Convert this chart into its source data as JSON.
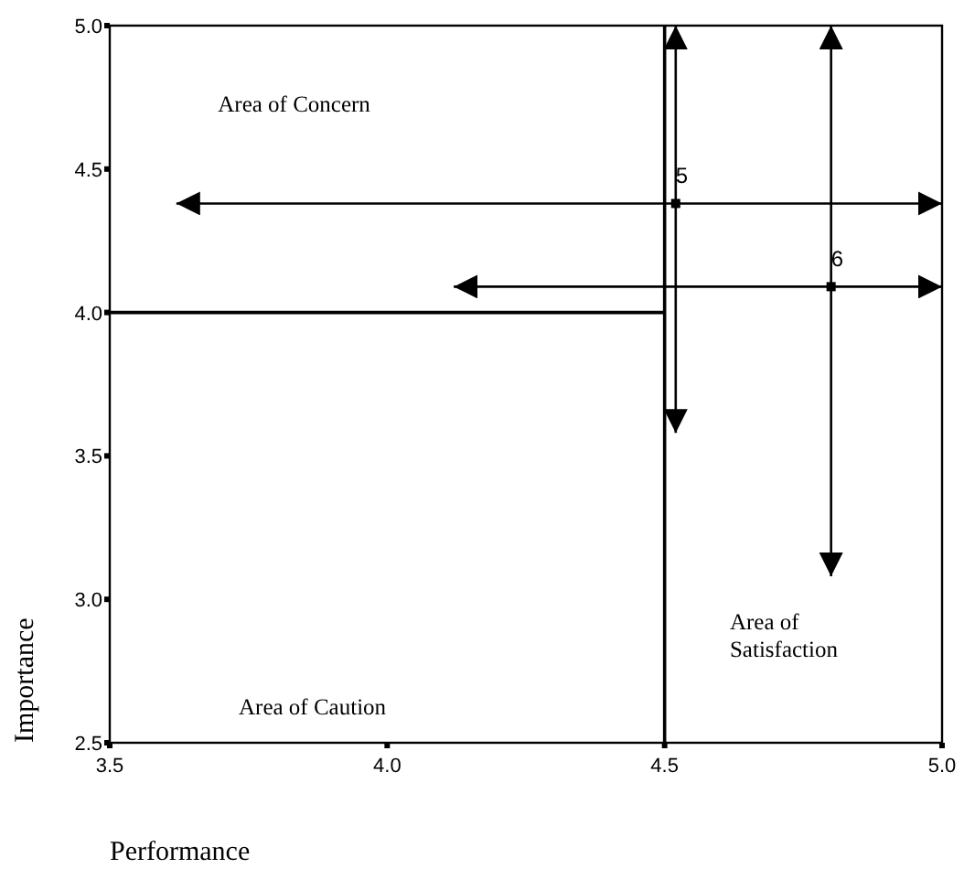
{
  "chart_data": {
    "type": "scatter",
    "xlabel": "Performance",
    "ylabel": "Importance",
    "xlim": [
      3.5,
      5.0
    ],
    "ylim": [
      2.5,
      5.0
    ],
    "xticks": [
      {
        "value": 3.5,
        "label": "3.5"
      },
      {
        "value": 4,
        "label": "4.0"
      },
      {
        "value": 4.5,
        "label": "4.5"
      },
      {
        "value": 5,
        "label": "5.0"
      }
    ],
    "yticks": [
      {
        "value": 2.5,
        "label": "2.5"
      },
      {
        "value": 3,
        "label": "3.0"
      },
      {
        "value": 3.5,
        "label": "3.5"
      },
      {
        "value": 4,
        "label": "4.0"
      },
      {
        "value": 4.5,
        "label": "4.5"
      },
      {
        "value": 5,
        "label": "5.0"
      }
    ],
    "grid": false,
    "series": [
      {
        "color": "#000000",
        "marker": "square",
        "x": [
          4.52,
          4.8
        ],
        "values": [
          4.38,
          4.09
        ],
        "errors": [
          [
            3.58,
            5.0
          ],
          [
            3.08,
            5.0
          ]
        ],
        "xerrors": [
          [
            3.62,
            5.0
          ],
          [
            4.12,
            5.0
          ]
        ]
      },
      {
        "type": "line",
        "color": "#000000",
        "x": [
          3.5,
          4.5
        ],
        "values": [
          4.0,
          4.0
        ]
      }
    ],
    "ref_lines": [
      {
        "axis": "x",
        "value": 4.5,
        "color": "#000000"
      }
    ],
    "annotations": [
      {
        "text": "5",
        "x": 4.52,
        "y": 4.38
      },
      {
        "text": "6",
        "x": 4.8,
        "y": 4.09
      },
      "Area of Concern",
      "Area of Caution",
      "Area of\nSatisfaction"
    ]
  }
}
